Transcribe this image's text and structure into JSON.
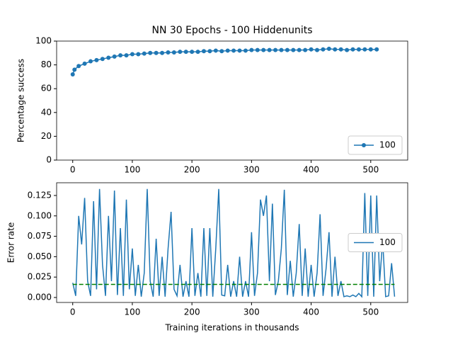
{
  "chart_data": [
    {
      "type": "line",
      "title": "NN 30 Epochs - 100 Hiddenunits",
      "ylabel": "Percentage success",
      "x": [
        0,
        3,
        10,
        20,
        30,
        40,
        50,
        60,
        70,
        80,
        90,
        100,
        110,
        120,
        130,
        140,
        150,
        160,
        170,
        180,
        190,
        200,
        210,
        220,
        230,
        240,
        250,
        260,
        270,
        280,
        290,
        300,
        310,
        320,
        330,
        340,
        350,
        360,
        370,
        380,
        390,
        400,
        410,
        420,
        430,
        440,
        450,
        460,
        470,
        480,
        490,
        500,
        510
      ],
      "series": [
        {
          "name": "100",
          "color": "#1f77b4",
          "marker": true,
          "values": [
            72,
            76,
            79,
            81,
            83,
            84,
            85,
            86,
            87,
            88,
            88,
            89,
            89,
            89.5,
            90,
            90,
            90,
            90.5,
            90.5,
            91,
            91,
            91,
            91,
            91.5,
            91.5,
            92,
            91.5,
            92,
            92,
            92,
            92,
            92.5,
            92.5,
            92.5,
            92.5,
            92.5,
            92.5,
            92.5,
            92.5,
            92.5,
            92.5,
            93,
            92.5,
            93,
            93.5,
            93,
            93,
            92.5,
            93,
            93,
            93,
            93,
            93
          ]
        }
      ],
      "xlim": [
        -27,
        562
      ],
      "xticks": [
        0,
        100,
        200,
        300,
        400,
        500
      ],
      "ylim": [
        0,
        100
      ],
      "yticks": [
        0,
        20,
        40,
        60,
        80,
        100
      ],
      "legend": "lower right"
    },
    {
      "type": "line",
      "ylabel": "Error rate",
      "xlabel": "Training iterations in thousands",
      "x": [
        0,
        5,
        10,
        15,
        20,
        25,
        30,
        35,
        40,
        45,
        50,
        55,
        60,
        65,
        70,
        75,
        80,
        85,
        90,
        95,
        100,
        105,
        110,
        115,
        120,
        125,
        130,
        135,
        140,
        145,
        150,
        155,
        160,
        165,
        170,
        175,
        180,
        185,
        190,
        195,
        200,
        205,
        210,
        215,
        220,
        225,
        230,
        235,
        240,
        245,
        250,
        255,
        260,
        265,
        270,
        275,
        280,
        285,
        290,
        295,
        300,
        305,
        310,
        315,
        320,
        325,
        330,
        335,
        340,
        345,
        350,
        355,
        360,
        365,
        370,
        375,
        380,
        385,
        390,
        395,
        400,
        405,
        410,
        415,
        420,
        425,
        430,
        435,
        440,
        445,
        450,
        455,
        460,
        465,
        470,
        475,
        480,
        485,
        490,
        495,
        500,
        505,
        510,
        515,
        520,
        525,
        530,
        535,
        540
      ],
      "series": [
        {
          "name": "100",
          "color": "#1f77b4",
          "values": [
            0.018,
            0.002,
            0.1,
            0.065,
            0.122,
            0.02,
            0.002,
            0.118,
            0.01,
            0.133,
            0.04,
            0.002,
            0.1,
            0.02,
            0.131,
            0.003,
            0.085,
            0.002,
            0.12,
            0.01,
            0.06,
            0.002,
            0.04,
            0.001,
            0.03,
            0.133,
            0.02,
            0.001,
            0.072,
            0.002,
            0.05,
            0.001,
            0.06,
            0.105,
            0.01,
            0.002,
            0.04,
            0.001,
            0.02,
            0.001,
            0.085,
            0.002,
            0.03,
            0.001,
            0.085,
            0.002,
            0.085,
            0.001,
            0.06,
            0.133,
            0.003,
            0.002,
            0.04,
            0.001,
            0.02,
            0.001,
            0.05,
            0.001,
            0.02,
            0.001,
            0.08,
            0.002,
            0.03,
            0.12,
            0.1,
            0.125,
            0.02,
            0.115,
            0.003,
            0.02,
            0.06,
            0.132,
            0.003,
            0.045,
            0.001,
            0.03,
            0.09,
            0.002,
            0.06,
            0.001,
            0.04,
            0.001,
            0.03,
            0.102,
            0.002,
            0.035,
            0.08,
            0.001,
            0.05,
            0.002,
            0.02,
            0.001,
            0.002,
            0.001,
            0.003,
            0.001,
            0.005,
            0.001,
            0.128,
            0.002,
            0.125,
            0.001,
            0.125,
            0.02,
            0.07,
            0.001,
            0.002,
            0.042,
            0.001
          ]
        },
        {
          "color": "#008000",
          "dashed": true,
          "x": [
            0,
            540
          ],
          "values": [
            0.016,
            0.016
          ]
        }
      ],
      "xlim": [
        -27,
        562
      ],
      "xticks": [
        0,
        100,
        200,
        300,
        400,
        500
      ],
      "ylim": [
        -0.0061,
        0.1406
      ],
      "yticks": [
        {
          "value": 0,
          "label": "0.000"
        },
        {
          "value": 0.025,
          "label": "0.025"
        },
        {
          "value": 0.05,
          "label": "0.050"
        },
        {
          "value": 0.075,
          "label": "0.075"
        },
        {
          "value": 0.1,
          "label": "0.100"
        },
        {
          "value": 0.125,
          "label": "0.125"
        }
      ],
      "legend": "center right"
    }
  ]
}
